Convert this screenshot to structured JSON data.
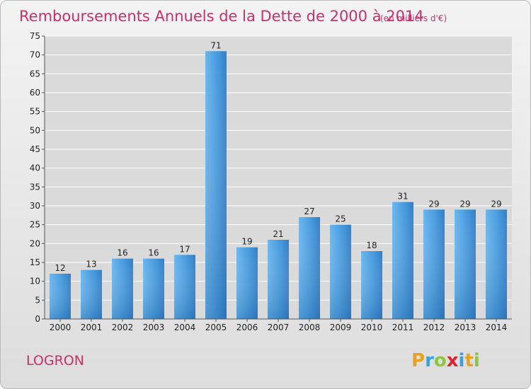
{
  "chart_data": {
    "type": "bar",
    "title": "Remboursements Annuels de la Dette de 2000 à 2014",
    "subtitle": "(en milliers d'€)",
    "categories": [
      "2000",
      "2001",
      "2002",
      "2003",
      "2004",
      "2005",
      "2006",
      "2007",
      "2008",
      "2009",
      "2010",
      "2011",
      "2012",
      "2013",
      "2014"
    ],
    "values": [
      12,
      13,
      16,
      16,
      17,
      71,
      19,
      21,
      27,
      25,
      18,
      31,
      29,
      29,
      29
    ],
    "ylim": [
      0,
      75
    ],
    "yticks": [
      0,
      5,
      10,
      15,
      20,
      25,
      30,
      35,
      40,
      45,
      50,
      55,
      60,
      65,
      70,
      75
    ],
    "xlabel": "",
    "ylabel": "",
    "grid": true,
    "bar_color": "#4a9de0"
  },
  "commune": "LOGRON",
  "brand": {
    "letters": [
      "P",
      "r",
      "o",
      "x",
      "i",
      "t",
      "i"
    ],
    "colors": [
      "#e8a21c",
      "#3aa0d8",
      "#8cc63f",
      "#d9232e",
      "#3aa0d8",
      "#e8a21c",
      "#8cc63f"
    ]
  }
}
